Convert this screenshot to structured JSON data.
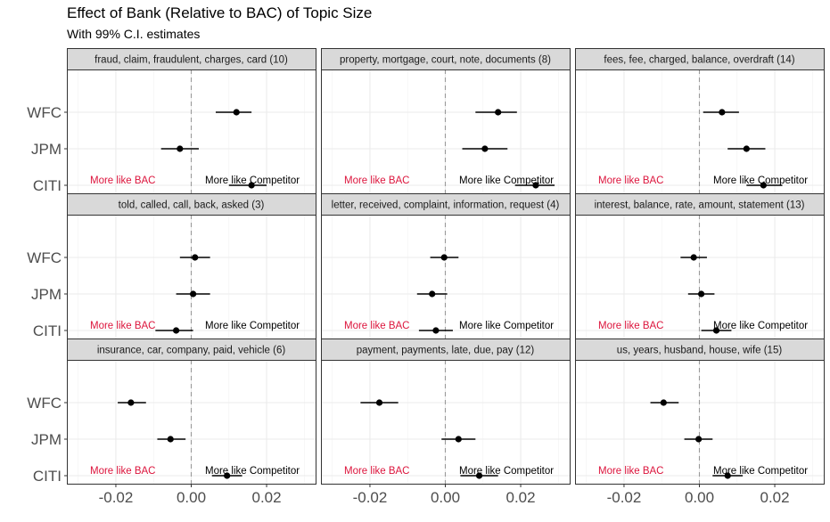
{
  "chart_data": {
    "type": "scatter",
    "title": "Effect of Bank (Relative to BAC) of Topic Size",
    "subtitle": "With 99% C.I. estimates",
    "xlim": [
      -0.033,
      0.033
    ],
    "x_ticks": [
      -0.02,
      0.0,
      0.02
    ],
    "x_tick_labels": [
      "-0.02",
      "0.00",
      "0.02"
    ],
    "categories": [
      "WFC",
      "JPM",
      "CITI"
    ],
    "reference_line_x": 0,
    "annotation_left": "More like BAC",
    "annotation_right": "More like Competitor",
    "annotation_left_color": "#dc143c",
    "grid": true,
    "panels": [
      {
        "label": "fraud, claim, fraudulent, charges, card (10)",
        "estimates": [
          {
            "bank": "WFC",
            "value": 0.012,
            "lo": 0.0065,
            "hi": 0.016
          },
          {
            "bank": "JPM",
            "value": -0.003,
            "lo": -0.008,
            "hi": 0.002
          },
          {
            "bank": "CITI",
            "value": 0.016,
            "lo": 0.01,
            "hi": 0.02
          }
        ]
      },
      {
        "label": "property, mortgage, court, note, documents (8)",
        "estimates": [
          {
            "bank": "WFC",
            "value": 0.014,
            "lo": 0.008,
            "hi": 0.019
          },
          {
            "bank": "JPM",
            "value": 0.0105,
            "lo": 0.0045,
            "hi": 0.0165
          },
          {
            "bank": "CITI",
            "value": 0.024,
            "lo": 0.0185,
            "hi": 0.029
          }
        ]
      },
      {
        "label": "fees, fee, charged, balance, overdraft (14)",
        "estimates": [
          {
            "bank": "WFC",
            "value": 0.006,
            "lo": 0.001,
            "hi": 0.0105
          },
          {
            "bank": "JPM",
            "value": 0.0125,
            "lo": 0.0075,
            "hi": 0.0175
          },
          {
            "bank": "CITI",
            "value": 0.017,
            "lo": 0.0125,
            "hi": 0.022
          }
        ]
      },
      {
        "label": "told, called, call, back, asked (3)",
        "estimates": [
          {
            "bank": "WFC",
            "value": 0.001,
            "lo": -0.003,
            "hi": 0.005
          },
          {
            "bank": "JPM",
            "value": 0.0005,
            "lo": -0.004,
            "hi": 0.005
          },
          {
            "bank": "CITI",
            "value": -0.004,
            "lo": -0.0095,
            "hi": 0.0005
          }
        ]
      },
      {
        "label": "letter, received, complaint, information, request (4)",
        "estimates": [
          {
            "bank": "WFC",
            "value": -0.0003,
            "lo": -0.004,
            "hi": 0.0035
          },
          {
            "bank": "JPM",
            "value": -0.0035,
            "lo": -0.0075,
            "hi": 0.0005
          },
          {
            "bank": "CITI",
            "value": -0.0025,
            "lo": -0.007,
            "hi": 0.002
          }
        ]
      },
      {
        "label": "interest, balance, rate, amount, statement (13)",
        "estimates": [
          {
            "bank": "WFC",
            "value": -0.0015,
            "lo": -0.005,
            "hi": 0.002
          },
          {
            "bank": "JPM",
            "value": 0.0005,
            "lo": -0.003,
            "hi": 0.004
          },
          {
            "bank": "CITI",
            "value": 0.0045,
            "lo": 0.0005,
            "hi": 0.0085
          }
        ]
      },
      {
        "label": "insurance, car, company, paid, vehicle (6)",
        "estimates": [
          {
            "bank": "WFC",
            "value": -0.016,
            "lo": -0.0195,
            "hi": -0.012
          },
          {
            "bank": "JPM",
            "value": -0.0055,
            "lo": -0.009,
            "hi": -0.0015
          },
          {
            "bank": "CITI",
            "value": 0.0095,
            "lo": 0.0055,
            "hi": 0.0135
          }
        ]
      },
      {
        "label": "payment, payments, late, due, pay (12)",
        "estimates": [
          {
            "bank": "WFC",
            "value": -0.0175,
            "lo": -0.0225,
            "hi": -0.0125
          },
          {
            "bank": "JPM",
            "value": 0.0035,
            "lo": -0.001,
            "hi": 0.008
          },
          {
            "bank": "CITI",
            "value": 0.009,
            "lo": 0.004,
            "hi": 0.014
          }
        ]
      },
      {
        "label": "us, years, husband, house, wife (15)",
        "estimates": [
          {
            "bank": "WFC",
            "value": -0.0095,
            "lo": -0.013,
            "hi": -0.0055
          },
          {
            "bank": "JPM",
            "value": -0.0002,
            "lo": -0.004,
            "hi": 0.0035
          },
          {
            "bank": "CITI",
            "value": 0.0075,
            "lo": 0.0035,
            "hi": 0.0115
          }
        ]
      }
    ]
  }
}
